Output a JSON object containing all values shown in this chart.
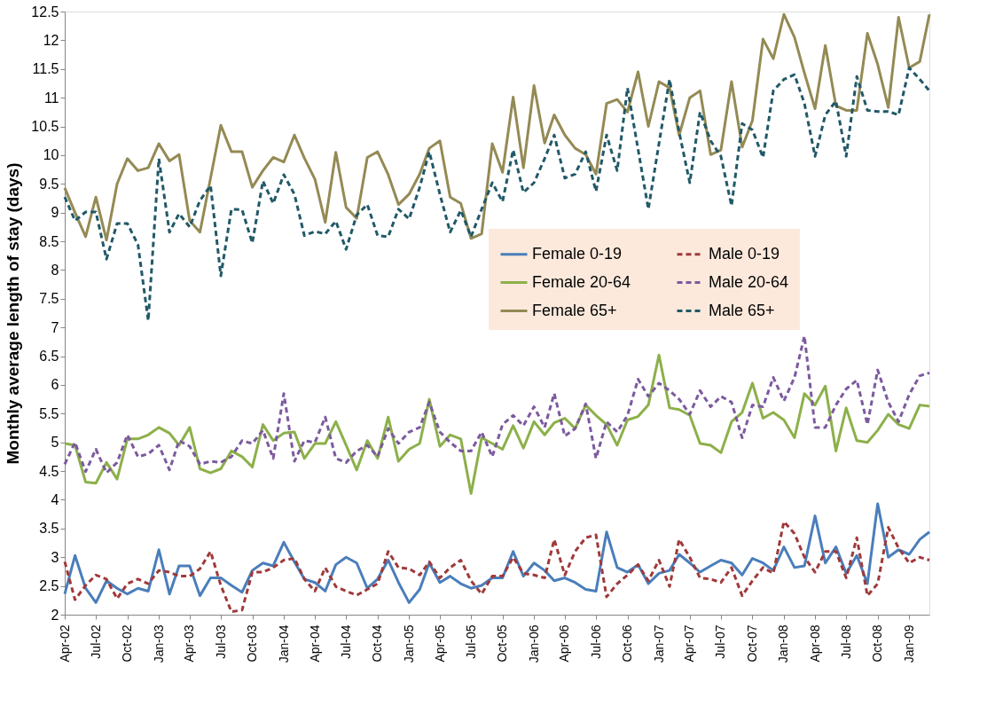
{
  "chart_data": {
    "type": "line",
    "ylabel": "Monthly average length of stay (days)",
    "x": [
      "2002-04",
      "2002-05",
      "2002-06",
      "2002-07",
      "2002-08",
      "2002-09",
      "2002-10",
      "2002-11",
      "2002-12",
      "2003-01",
      "2003-02",
      "2003-03",
      "2003-04",
      "2003-05",
      "2003-06",
      "2003-07",
      "2003-08",
      "2003-09",
      "2003-10",
      "2003-11",
      "2003-12",
      "2004-01",
      "2004-02",
      "2004-03",
      "2004-04",
      "2004-05",
      "2004-06",
      "2004-07",
      "2004-08",
      "2004-09",
      "2004-10",
      "2004-11",
      "2004-12",
      "2005-01",
      "2005-02",
      "2005-03",
      "2005-04",
      "2005-05",
      "2005-06",
      "2005-07",
      "2005-08",
      "2005-09",
      "2005-10",
      "2005-11",
      "2005-12",
      "2006-01",
      "2006-02",
      "2006-03",
      "2006-04",
      "2006-05",
      "2006-06",
      "2006-07",
      "2006-08",
      "2006-09",
      "2006-10",
      "2006-11",
      "2006-12",
      "2007-01",
      "2007-02",
      "2007-03",
      "2007-04",
      "2007-05",
      "2007-06",
      "2007-07",
      "2007-08",
      "2007-09",
      "2007-10",
      "2007-11",
      "2007-12",
      "2008-01",
      "2008-02",
      "2008-03",
      "2008-04",
      "2008-05",
      "2008-06",
      "2008-07",
      "2008-08",
      "2008-09",
      "2008-10",
      "2008-11",
      "2008-12",
      "2009-01",
      "2009-02",
      "2009-03"
    ],
    "series": [
      {
        "name": "Female 0-19",
        "color": "#4a7ebb",
        "line_style": "solid",
        "values": [
          2.36,
          3.03,
          2.46,
          2.21,
          2.59,
          2.46,
          2.36,
          2.46,
          2.41,
          3.13,
          2.36,
          2.85,
          2.85,
          2.33,
          2.64,
          2.64,
          2.51,
          2.39,
          2.77,
          2.9,
          2.85,
          3.26,
          2.92,
          2.62,
          2.56,
          2.41,
          2.87,
          3.0,
          2.9,
          2.46,
          2.62,
          2.95,
          2.56,
          2.21,
          2.44,
          2.9,
          2.56,
          2.67,
          2.54,
          2.46,
          2.51,
          2.64,
          2.64,
          3.1,
          2.67,
          2.9,
          2.77,
          2.59,
          2.64,
          2.56,
          2.44,
          2.41,
          3.44,
          2.82,
          2.74,
          2.87,
          2.54,
          2.72,
          2.77,
          3.05,
          2.9,
          2.74,
          2.85,
          2.95,
          2.9,
          2.69,
          2.98,
          2.9,
          2.77,
          3.18,
          2.82,
          2.85,
          3.72,
          2.9,
          3.18,
          2.72,
          3.03,
          2.54,
          3.93,
          3.0,
          3.13,
          3.05,
          3.31,
          3.44
        ]
      },
      {
        "name": "Male 0-19",
        "color": "#a0393a",
        "line_style": "dashed",
        "values": [
          2.92,
          2.26,
          2.51,
          2.69,
          2.62,
          2.28,
          2.54,
          2.62,
          2.54,
          2.77,
          2.74,
          2.67,
          2.67,
          2.8,
          3.1,
          2.51,
          2.05,
          2.08,
          2.74,
          2.74,
          2.82,
          2.95,
          2.98,
          2.62,
          2.41,
          2.82,
          2.49,
          2.41,
          2.34,
          2.44,
          2.54,
          3.1,
          2.82,
          2.8,
          2.69,
          2.92,
          2.64,
          2.82,
          2.95,
          2.59,
          2.36,
          2.67,
          2.67,
          3.0,
          2.72,
          2.69,
          2.64,
          3.31,
          2.69,
          3.1,
          3.34,
          3.39,
          2.31,
          2.54,
          2.69,
          2.87,
          2.59,
          2.95,
          2.49,
          3.31,
          3.0,
          2.64,
          2.62,
          2.56,
          2.82,
          2.33,
          2.59,
          2.82,
          2.72,
          3.62,
          3.41,
          3.0,
          2.74,
          3.1,
          3.1,
          2.64,
          3.34,
          2.33,
          2.54,
          3.52,
          3.16,
          2.9,
          3.0,
          2.95
        ]
      },
      {
        "name": "Female 20-64",
        "color": "#8cb04a",
        "line_style": "solid",
        "values": [
          4.98,
          4.95,
          4.31,
          4.29,
          4.65,
          4.36,
          5.06,
          5.06,
          5.13,
          5.26,
          5.16,
          4.95,
          5.26,
          4.54,
          4.47,
          4.54,
          4.85,
          4.75,
          4.57,
          5.31,
          5.03,
          5.16,
          5.18,
          4.72,
          4.98,
          4.98,
          5.36,
          4.95,
          4.52,
          5.03,
          4.72,
          5.44,
          4.67,
          4.88,
          4.98,
          5.75,
          4.93,
          5.13,
          5.06,
          4.11,
          5.08,
          4.98,
          4.88,
          5.29,
          4.9,
          5.36,
          5.13,
          5.34,
          5.42,
          5.24,
          5.65,
          5.47,
          5.31,
          4.95,
          5.39,
          5.45,
          5.65,
          6.52,
          5.6,
          5.57,
          5.47,
          4.98,
          4.95,
          4.82,
          5.36,
          5.52,
          6.03,
          5.42,
          5.52,
          5.39,
          5.08,
          5.85,
          5.65,
          5.98,
          4.85,
          5.6,
          5.03,
          5.0,
          5.21,
          5.49,
          5.31,
          5.24,
          5.65,
          5.63
        ]
      },
      {
        "name": "Male 20-64",
        "color": "#7c5a9e",
        "line_style": "dashed",
        "values": [
          4.62,
          5.0,
          4.49,
          4.88,
          4.47,
          4.65,
          5.13,
          4.75,
          4.8,
          4.95,
          4.52,
          5.03,
          4.93,
          4.62,
          4.67,
          4.65,
          4.75,
          5.03,
          4.98,
          5.21,
          4.72,
          5.85,
          4.67,
          5.03,
          5.0,
          5.44,
          4.72,
          4.65,
          4.85,
          4.95,
          4.75,
          5.24,
          4.98,
          5.18,
          5.26,
          5.7,
          5.18,
          5.0,
          4.85,
          4.85,
          5.18,
          4.75,
          5.31,
          5.47,
          5.29,
          5.62,
          5.26,
          5.85,
          5.11,
          5.24,
          5.67,
          4.72,
          5.36,
          5.18,
          5.47,
          6.1,
          5.8,
          6.03,
          5.9,
          5.75,
          5.49,
          5.9,
          5.62,
          5.8,
          5.7,
          5.08,
          5.65,
          5.62,
          6.13,
          5.72,
          6.13,
          6.85,
          5.26,
          5.26,
          5.65,
          5.93,
          6.08,
          5.31,
          6.26,
          5.7,
          5.36,
          5.83,
          6.16,
          6.21
        ]
      },
      {
        "name": "Female 65+",
        "color": "#948a54",
        "line_style": "solid",
        "values": [
          9.43,
          9.0,
          8.58,
          9.27,
          8.52,
          9.5,
          9.94,
          9.73,
          9.78,
          10.2,
          9.9,
          10.01,
          8.86,
          8.66,
          9.6,
          10.52,
          10.06,
          10.06,
          9.44,
          9.73,
          9.96,
          9.88,
          10.35,
          9.95,
          9.58,
          8.83,
          10.05,
          9.09,
          8.9,
          9.96,
          10.06,
          9.66,
          9.14,
          9.32,
          9.67,
          10.12,
          10.25,
          9.27,
          9.16,
          8.55,
          8.63,
          10.2,
          9.7,
          11.01,
          9.78,
          11.21,
          10.21,
          10.7,
          10.35,
          10.12,
          10.01,
          9.67,
          10.9,
          10.97,
          10.75,
          11.45,
          10.5,
          11.28,
          11.17,
          10.35,
          11.0,
          11.12,
          10.01,
          10.09,
          11.28,
          10.14,
          10.6,
          12.02,
          11.68,
          12.45,
          12.05,
          11.43,
          10.81,
          11.91,
          10.86,
          10.78,
          10.78,
          12.12,
          11.58,
          10.83,
          12.4,
          11.52,
          11.63,
          12.45
        ]
      },
      {
        "name": "Male 65+",
        "color": "#215968",
        "line_style": "dashed",
        "values": [
          9.27,
          8.86,
          9.01,
          9.01,
          8.19,
          8.81,
          8.81,
          8.44,
          7.12,
          9.94,
          8.66,
          8.98,
          8.75,
          9.21,
          9.47,
          7.9,
          9.06,
          9.05,
          8.47,
          9.55,
          9.16,
          9.66,
          9.32,
          8.6,
          8.67,
          8.63,
          8.85,
          8.36,
          8.96,
          9.14,
          8.6,
          8.58,
          9.06,
          8.89,
          9.44,
          10.06,
          9.32,
          8.66,
          9.04,
          8.58,
          9.06,
          9.52,
          9.19,
          10.09,
          9.35,
          9.52,
          9.94,
          10.35,
          9.6,
          9.67,
          10.06,
          9.37,
          10.35,
          9.73,
          11.17,
          10.1,
          9.06,
          10.2,
          11.32,
          10.4,
          9.52,
          10.75,
          10.25,
          9.98,
          9.12,
          10.55,
          10.44,
          9.96,
          11.12,
          11.32,
          11.4,
          10.9,
          9.98,
          10.7,
          10.94,
          9.98,
          11.37,
          10.78,
          10.76,
          10.76,
          10.7,
          11.52,
          11.32,
          11.12
        ]
      }
    ],
    "xlim": [
      "2002-04",
      "2009-03"
    ],
    "xticks": [
      {
        "value": "2002-04",
        "label": "Apr-02"
      },
      {
        "value": "2002-07",
        "label": "Jul-02"
      },
      {
        "value": "2002-10",
        "label": "Oct-02"
      },
      {
        "value": "2003-01",
        "label": "Jan-03"
      },
      {
        "value": "2003-04",
        "label": "Apr-03"
      },
      {
        "value": "2003-07",
        "label": "Jul-03"
      },
      {
        "value": "2003-10",
        "label": "Oct-03"
      },
      {
        "value": "2004-01",
        "label": "Jan-04"
      },
      {
        "value": "2004-04",
        "label": "Apr-04"
      },
      {
        "value": "2004-07",
        "label": "Jul-04"
      },
      {
        "value": "2004-10",
        "label": "Oct-04"
      },
      {
        "value": "2005-01",
        "label": "Jan-05"
      },
      {
        "value": "2005-04",
        "label": "Apr-05"
      },
      {
        "value": "2005-07",
        "label": "Jul-05"
      },
      {
        "value": "2005-10",
        "label": "Oct-05"
      },
      {
        "value": "2006-01",
        "label": "Jan-06"
      },
      {
        "value": "2006-04",
        "label": "Apr-06"
      },
      {
        "value": "2006-07",
        "label": "Jul-06"
      },
      {
        "value": "2006-10",
        "label": "Oct-06"
      },
      {
        "value": "2007-01",
        "label": "Jan-07"
      },
      {
        "value": "2007-04",
        "label": "Apr-07"
      },
      {
        "value": "2007-07",
        "label": "Jul-07"
      },
      {
        "value": "2007-10",
        "label": "Oct-07"
      },
      {
        "value": "2008-01",
        "label": "Jan-08"
      },
      {
        "value": "2008-04",
        "label": "Apr-08"
      },
      {
        "value": "2008-07",
        "label": "Jul-08"
      },
      {
        "value": "2008-10",
        "label": "Oct-08"
      },
      {
        "value": "2009-01",
        "label": "Jan-09"
      }
    ],
    "ylim": [
      2,
      12.5
    ],
    "yticks": [
      2,
      2.5,
      3,
      3.5,
      4,
      4.5,
      5,
      5.5,
      6,
      6.5,
      7,
      7.5,
      8,
      8.5,
      9,
      9.5,
      10,
      10.5,
      11,
      11.5,
      12,
      12.5
    ],
    "grid": false,
    "legend": "right",
    "marker": "none"
  }
}
